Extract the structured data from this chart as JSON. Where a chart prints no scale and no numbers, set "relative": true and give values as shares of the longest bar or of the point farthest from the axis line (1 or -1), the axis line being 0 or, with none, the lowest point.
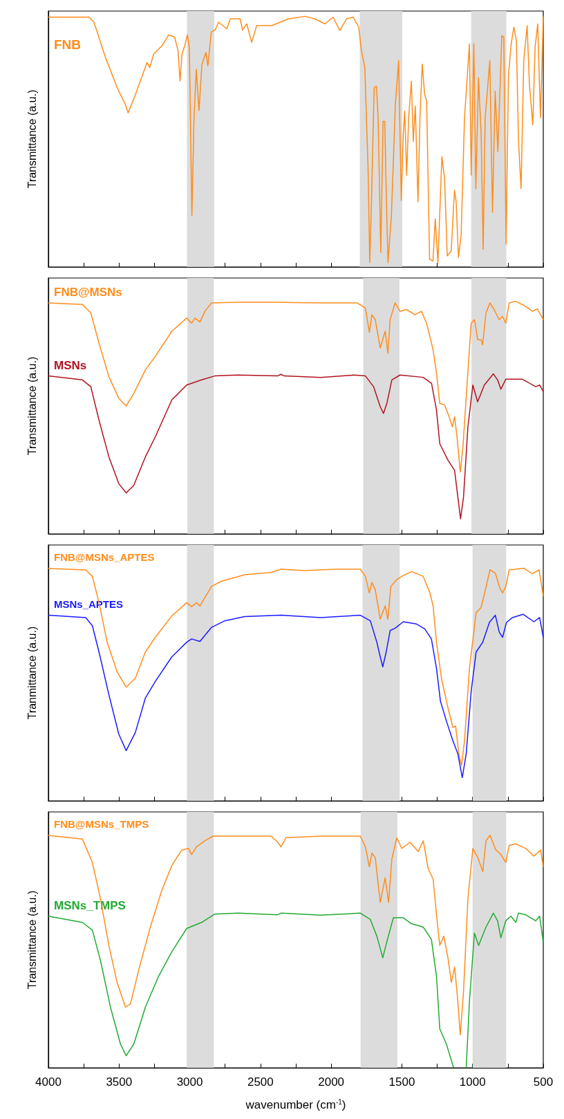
{
  "chart_data": [
    {
      "type": "line",
      "relative": true,
      "ylabel": "Transmittance (a.u.)",
      "xlim": [
        4000,
        500
      ],
      "tick_labels": false,
      "xticks": [
        4000,
        {
          "value": 3750,
          "label": null
        },
        3500,
        {
          "value": 3250,
          "label": null
        },
        3000,
        {
          "value": 2750,
          "label": null
        },
        2500,
        {
          "value": 2250,
          "label": null
        },
        2000,
        {
          "value": 1750,
          "label": null
        },
        1500,
        {
          "value": 1250,
          "label": null
        },
        1000,
        {
          "value": 750,
          "label": null
        },
        500
      ],
      "bands": [
        {
          "axis": "x",
          "from": 3020,
          "to": 2827,
          "color": "#dcdcdc"
        },
        {
          "axis": "x",
          "from": 1798,
          "to": 1497,
          "color": "#dcdcdc"
        },
        {
          "axis": "x",
          "from": 1010,
          "to": 761,
          "color": "#dcdcdc"
        }
      ],
      "series": [
        {
          "name": "FNB",
          "color": "#ff8c1a",
          "x": [
            4000,
            3713,
            3678,
            3596,
            3513,
            3455,
            3436,
            3384,
            3302,
            3283,
            3255,
            3196,
            3149,
            3107,
            3083,
            3069,
            3055,
            3036,
            3017,
            3003,
            2985,
            2970,
            2954,
            2935,
            2914,
            2886,
            2872,
            2848,
            2820,
            2797,
            2738,
            2714,
            2644,
            2627,
            2597,
            2562,
            2527,
            2420,
            2303,
            2185,
            2115,
            2044,
            1986,
            1939,
            1891,
            1845,
            1805,
            1786,
            1762,
            1739,
            1727,
            1715,
            1696,
            1680,
            1668,
            1649,
            1633,
            1621,
            1609,
            1598,
            1574,
            1546,
            1523,
            1504,
            1490,
            1480,
            1466,
            1452,
            1433,
            1419,
            1405,
            1386,
            1372,
            1356,
            1339,
            1325,
            1304,
            1280,
            1264,
            1245,
            1217,
            1198,
            1179,
            1151,
            1128,
            1116,
            1100,
            1081,
            1057,
            1022,
            1010,
            991,
            977,
            958,
            939,
            925,
            911,
            878,
            859,
            840,
            821,
            793,
            779,
            763,
            746,
            727,
            708,
            690,
            675,
            657,
            638,
            614,
            598,
            574,
            558,
            539,
            520,
            500
          ],
          "values": [
            0.996,
            0.996,
            0.976,
            0.835,
            0.714,
            0.647,
            0.614,
            0.688,
            0.815,
            0.795,
            0.849,
            0.882,
            0.925,
            0.916,
            0.862,
            0.741,
            0.849,
            0.882,
            0.925,
            0.875,
            0.205,
            0.594,
            0.788,
            0.623,
            0.808,
            0.855,
            0.802,
            0.936,
            0.945,
            0.976,
            0.949,
            0.989,
            0.989,
            0.945,
            0.969,
            0.895,
            0.962,
            0.962,
            0.989,
            0.999,
            0.989,
            0.969,
            0.996,
            0.942,
            0.989,
            0.996,
            0.956,
            0.862,
            0.795,
            0.393,
            0.017,
            0.259,
            0.714,
            0.721,
            0.594,
            0.058,
            0.58,
            0.58,
            0.259,
            0.017,
            0.205,
            0.647,
            0.822,
            0.265,
            0.527,
            0.621,
            0.365,
            0.594,
            0.741,
            0.5,
            0.641,
            0.259,
            0.594,
            0.808,
            0.688,
            0.661,
            0.031,
            0.024,
            0.192,
            0.017,
            0.44,
            0.353,
            0.044,
            0.064,
            0.306,
            0.259,
            0.038,
            0.125,
            0.594,
            0.889,
            0.366,
            0.889,
            0.312,
            0.755,
            0.527,
            0.071,
            0.594,
            0.822,
            0.218,
            0.701,
            0.46,
            0.922,
            0.916,
            0.091,
            0.768,
            0.889,
            0.956,
            0.902,
            0.5,
            0.312,
            0.822,
            0.962,
            0.728,
            0.567,
            0.875,
            0.969,
            0.594,
            1
          ]
        }
      ]
    },
    {
      "type": "line",
      "relative": true,
      "ylabel": "Transmittance (a.u.)",
      "xlim": [
        4000,
        500
      ],
      "tick_labels": false,
      "xticks": [
        4000,
        {
          "value": 3750,
          "label": null
        },
        3500,
        {
          "value": 3250,
          "label": null
        },
        3000,
        {
          "value": 2750,
          "label": null
        },
        2500,
        {
          "value": 2250,
          "label": null
        },
        2000,
        {
          "value": 1750,
          "label": null
        },
        1500,
        {
          "value": 1250,
          "label": null
        },
        1000,
        {
          "value": 750,
          "label": null
        },
        500
      ],
      "bands": [
        {
          "axis": "x",
          "from": 3017,
          "to": 2830,
          "color": "#dcdcdc"
        },
        {
          "axis": "x",
          "from": 1773,
          "to": 1517,
          "color": "#dcdcdc"
        },
        {
          "axis": "x",
          "from": 1008,
          "to": 762,
          "color": "#dcdcdc"
        }
      ],
      "series": [
        {
          "name": "FNB@MSNs",
          "color": "#ff8c1a",
          "x": [
            4000,
            3759,
            3700,
            3642,
            3572,
            3502,
            3450,
            3396,
            3314,
            3244,
            3127,
            3022,
            2987,
            2963,
            2928,
            2893,
            2846,
            2659,
            2425,
            2074,
            1817,
            1758,
            1730,
            1712,
            1688,
            1653,
            1618,
            1599,
            1583,
            1548,
            1513,
            1466,
            1407,
            1361,
            1326,
            1302,
            1279,
            1255,
            1232,
            1197,
            1166,
            1143,
            1127,
            1110,
            1087,
            1068,
            1040,
            1010,
            987,
            964,
            940,
            929,
            905,
            877,
            847,
            812,
            788,
            765,
            741,
            694,
            624,
            577,
            542,
            500
          ],
          "values": [
            0.993,
            0.986,
            0.95,
            0.82,
            0.676,
            0.583,
            0.55,
            0.604,
            0.705,
            0.763,
            0.871,
            0.928,
            0.906,
            0.928,
            0.911,
            0.957,
            0.993,
            0.996,
            0.996,
            0.993,
            0.993,
            0.971,
            0.866,
            0.942,
            0.921,
            0.799,
            0.871,
            0.777,
            0.921,
            0.993,
            0.957,
            0.964,
            0.942,
            0.957,
            0.906,
            0.849,
            0.791,
            0.691,
            0.561,
            0.554,
            0.504,
            0.46,
            0.504,
            0.417,
            0.266,
            0.374,
            0.633,
            0.906,
            0.921,
            0.835,
            0.835,
            0.813,
            0.95,
            0.993,
            0.964,
            0.921,
            0.935,
            0.906,
            0.993,
            1,
            0.978,
            0.957,
            0.967,
            0.921
          ]
        },
        {
          "name": "MSNs",
          "color": "#b0121e",
          "x": [
            4000,
            3759,
            3700,
            3642,
            3572,
            3502,
            3450,
            3396,
            3314,
            3244,
            3127,
            3022,
            2917,
            2823,
            2659,
            2378,
            2355,
            2332,
            2074,
            1840,
            1758,
            1700,
            1653,
            1630,
            1606,
            1571,
            1513,
            1349,
            1290,
            1255,
            1232,
            1174,
            1127,
            1104,
            1085,
            1064,
            1033,
            998,
            964,
            917,
            853,
            823,
            800,
            765,
            647,
            554,
            526,
            500
          ],
          "values": [
            0.679,
            0.662,
            0.633,
            0.489,
            0.331,
            0.216,
            0.176,
            0.209,
            0.331,
            0.417,
            0.576,
            0.64,
            0.662,
            0.679,
            0.683,
            0.679,
            0.686,
            0.679,
            0.673,
            0.683,
            0.679,
            0.633,
            0.547,
            0.518,
            0.561,
            0.662,
            0.683,
            0.673,
            0.647,
            0.532,
            0.388,
            0.317,
            0.273,
            0.158,
            0.065,
            0.158,
            0.46,
            0.64,
            0.568,
            0.64,
            0.688,
            0.662,
            0.622,
            0.665,
            0.665,
            0.633,
            0.64,
            0.612
          ]
        }
      ]
    },
    {
      "type": "line",
      "relative": true,
      "ylabel": "Tranmittance (a.u.)",
      "xlim": [
        4000,
        500
      ],
      "tick_labels": false,
      "xticks": [
        4000,
        {
          "value": 3750,
          "label": null
        },
        3500,
        {
          "value": 3250,
          "label": null
        },
        3000,
        {
          "value": 2750,
          "label": null
        },
        2500,
        {
          "value": 2250,
          "label": null
        },
        2000,
        {
          "value": 1750,
          "label": null
        },
        1500,
        {
          "value": 1250,
          "label": null
        },
        1000,
        {
          "value": 750,
          "label": null
        },
        500
      ],
      "bands": [
        {
          "axis": "x",
          "from": 3020,
          "to": 2830,
          "color": "#dcdcdc"
        },
        {
          "axis": "x",
          "from": 1778,
          "to": 1515,
          "color": "#dcdcdc"
        },
        {
          "axis": "x",
          "from": 1000,
          "to": 762,
          "color": "#dcdcdc"
        }
      ],
      "series": [
        {
          "name": "FNB@MSNs_APTES",
          "color": "#ff8c1a",
          "x": [
            4000,
            3736,
            3689,
            3642,
            3584,
            3514,
            3450,
            3385,
            3314,
            3244,
            3127,
            3022,
            2987,
            2952,
            2928,
            2846,
            2776,
            2612,
            2425,
            2355,
            2191,
            1957,
            1794,
            1758,
            1730,
            1712,
            1688,
            1653,
            1618,
            1599,
            1578,
            1536,
            1501,
            1431,
            1349,
            1302,
            1279,
            1255,
            1220,
            1174,
            1139,
            1120,
            1097,
            1078,
            1057,
            1022,
            975,
            940,
            917,
            877,
            839,
            807,
            788,
            765,
            741,
            636,
            577,
            530,
            500
          ],
          "values": [
            0.999,
            0.993,
            0.965,
            0.852,
            0.682,
            0.555,
            0.489,
            0.527,
            0.64,
            0.703,
            0.795,
            0.852,
            0.835,
            0.852,
            0.838,
            0.922,
            0.944,
            0.972,
            0.982,
            0.996,
            0.99,
            0.996,
            0.996,
            0.965,
            0.894,
            0.939,
            0.908,
            0.781,
            0.838,
            0.781,
            0.922,
            0.951,
            0.965,
            0.986,
            0.965,
            0.894,
            0.838,
            0.682,
            0.527,
            0.4,
            0.315,
            0.322,
            0.202,
            0.153,
            0.258,
            0.569,
            0.809,
            0.831,
            0.887,
            0.993,
            0.979,
            0.915,
            0.894,
            0.922,
            0.993,
            1,
            0.976,
            0.993,
            0.88
          ]
        },
        {
          "name": "MSNs_APTES",
          "color": "#1a1aff",
          "x": [
            4000,
            3736,
            3689,
            3642,
            3572,
            3502,
            3450,
            3385,
            3314,
            3244,
            3127,
            3022,
            2987,
            2928,
            2846,
            2753,
            2612,
            2355,
            2074,
            1794,
            1723,
            1677,
            1653,
            1635,
            1611,
            1583,
            1548,
            1490,
            1396,
            1338,
            1291,
            1255,
            1227,
            1185,
            1139,
            1104,
            1073,
            1045,
            1010,
            975,
            928,
            881,
            839,
            811,
            788,
            760,
            718,
            643,
            566,
            526,
            500
          ],
          "values": [
            0.798,
            0.788,
            0.753,
            0.64,
            0.456,
            0.287,
            0.216,
            0.294,
            0.442,
            0.513,
            0.619,
            0.682,
            0.696,
            0.685,
            0.746,
            0.774,
            0.792,
            0.798,
            0.788,
            0.798,
            0.774,
            0.682,
            0.619,
            0.576,
            0.64,
            0.732,
            0.742,
            0.77,
            0.76,
            0.739,
            0.696,
            0.569,
            0.428,
            0.343,
            0.258,
            0.202,
            0.1,
            0.202,
            0.47,
            0.64,
            0.682,
            0.767,
            0.798,
            0.725,
            0.703,
            0.767,
            0.788,
            0.802,
            0.77,
            0.788,
            0.703
          ]
        }
      ]
    },
    {
      "type": "line",
      "relative": true,
      "ylabel": "Transmittance (a.u.)",
      "xlabel": "wavenumber (cm$^{-1}$)",
      "xlim": [
        4000,
        500
      ],
      "tick_labels": "x",
      "xticks": [
        4000,
        {
          "value": 3750,
          "label": null
        },
        3500,
        {
          "value": 3250,
          "label": null
        },
        3000,
        {
          "value": 2750,
          "label": null
        },
        2500,
        {
          "value": 2250,
          "label": null
        },
        2000,
        {
          "value": 1750,
          "label": null
        },
        1500,
        {
          "value": 1250,
          "label": null
        },
        1000,
        {
          "value": 750,
          "label": null
        },
        500
      ],
      "bands": [
        {
          "axis": "x",
          "from": 3022,
          "to": 2830,
          "color": "#dcdcdc"
        },
        {
          "axis": "x",
          "from": 1792,
          "to": 1532,
          "color": "#dcdcdc"
        },
        {
          "axis": "x",
          "from": 1000,
          "to": 762,
          "color": "#dcdcdc"
        }
      ],
      "series": [
        {
          "name": "FNB@MSNs_TMPS",
          "color": "#ff8c1a",
          "x": [
            4000,
            3759,
            3689,
            3631,
            3572,
            3514,
            3455,
            3420,
            3361,
            3279,
            3197,
            3127,
            3057,
            3010,
            2987,
            2952,
            2893,
            2835,
            2425,
            2378,
            2355,
            2320,
            2074,
            1794,
            1758,
            1730,
            1712,
            1688,
            1653,
            1618,
            1594,
            1571,
            1536,
            1501,
            1442,
            1384,
            1349,
            1314,
            1279,
            1255,
            1232,
            1204,
            1174,
            1150,
            1127,
            1108,
            1087,
            1064,
            1033,
            998,
            963,
            928,
            905,
            877,
            835,
            800,
            765,
            741,
            694,
            624,
            566,
            519,
            500
          ],
          "values": [
            0.999,
            0.983,
            0.883,
            0.725,
            0.526,
            0.367,
            0.261,
            0.274,
            0.421,
            0.605,
            0.764,
            0.87,
            0.936,
            0.943,
            0.917,
            0.95,
            0.976,
            0.996,
            0.996,
            0.97,
            0.95,
            0.989,
            0.996,
            0.996,
            0.95,
            0.864,
            0.923,
            0.903,
            0.711,
            0.817,
            0.711,
            0.897,
            0.989,
            0.943,
            0.97,
            0.93,
            0.976,
            0.857,
            0.811,
            0.658,
            0.526,
            0.566,
            0.473,
            0.367,
            0.433,
            0.314,
            0.142,
            0.327,
            0.725,
            0.943,
            0.903,
            0.844,
            0.976,
            1,
            0.936,
            0.917,
            0.883,
            0.956,
            0.963,
            0.943,
            0.91,
            0.936,
            0.864
          ]
        },
        {
          "name": "MSNs_TMPS",
          "color": "#22aa33",
          "x": [
            4000,
            3759,
            3689,
            3631,
            3561,
            3490,
            3450,
            3396,
            3314,
            3221,
            3127,
            3022,
            2917,
            2823,
            2659,
            2378,
            2355,
            2074,
            1794,
            1723,
            1677,
            1635,
            1602,
            1560,
            1490,
            1431,
            1349,
            1291,
            1255,
            1232,
            1185,
            1134,
            1090,
            1045,
            1022,
            987,
            957,
            905,
            853,
            823,
            800,
            765,
            729,
            694,
            675,
            624,
            554,
            526,
            500
          ],
          "values": [
            0.652,
            0.625,
            0.592,
            0.46,
            0.261,
            0.102,
            0.052,
            0.102,
            0.261,
            0.393,
            0.499,
            0.599,
            0.625,
            0.661,
            0.665,
            0.658,
            0.665,
            0.656,
            0.665,
            0.638,
            0.566,
            0.473,
            0.552,
            0.645,
            0.645,
            0.619,
            0.605,
            0.552,
            0.393,
            0.168,
            0.102,
            0,
            null,
            0,
            0.287,
            0.579,
            0.526,
            0.605,
            0.665,
            0.632,
            0.559,
            0.632,
            0.652,
            0.625,
            0.665,
            0.658,
            0.632,
            0.652,
            0.539
          ]
        }
      ]
    }
  ]
}
